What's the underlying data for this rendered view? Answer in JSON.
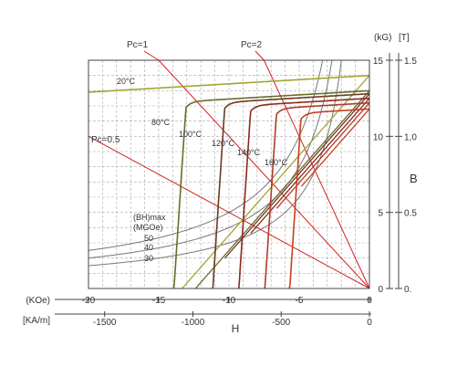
{
  "chart_data": {
    "type": "line",
    "title": "",
    "xlabel": "H",
    "ylabel": "B",
    "x_primary": {
      "unit": "(KOe)",
      "range": [
        -20,
        0
      ],
      "ticks": [
        -20,
        -15,
        -10,
        -5,
        0
      ]
    },
    "x_secondary": {
      "unit": "[KA/m]",
      "ticks": [
        -1500,
        -1000,
        -500,
        0
      ]
    },
    "y_primary": {
      "unit": "(kG)",
      "range": [
        0,
        15
      ],
      "ticks": [
        0,
        5,
        10,
        15
      ]
    },
    "y_secondary": {
      "unit": "[T]",
      "ticks": [
        "0.",
        "0.5",
        "1,0",
        "1.5"
      ]
    },
    "grid": true,
    "permeance_lines": [
      {
        "name": "Pc=0.5",
        "slope": 0.5
      },
      {
        "name": "Pc=1",
        "slope": 1
      },
      {
        "name": "Pc=2",
        "slope": 2
      }
    ],
    "bh_label": "(BH)max\n(MGOe)",
    "bhmax_curves": [
      {
        "name": "50",
        "value": 50
      },
      {
        "name": "40",
        "value": 40
      },
      {
        "name": "30",
        "value": 30
      }
    ],
    "temperature_curves": [
      {
        "name": "20°C",
        "br": 14.0,
        "recoil": 1.05,
        "hcj": -26,
        "color": "#a4a432"
      },
      {
        "name": "80°C",
        "br": 13.0,
        "recoil": 1.05,
        "hcj": -14.2,
        "color": "#6b6b2a"
      },
      {
        "name": "100°C",
        "br": 12.8,
        "recoil": 1.05,
        "hcj": -11.2,
        "color": "#6b3a1e"
      },
      {
        "name": "120°C",
        "br": 12.5,
        "recoil": 1.05,
        "hcj": -9.2,
        "color": "#8b2a1e"
      },
      {
        "name": "140°C",
        "br": 12.2,
        "recoil": 1.05,
        "hcj": -7.2,
        "color": "#b03a2a"
      },
      {
        "name": "160°C",
        "br": 11.8,
        "recoil": 1.05,
        "hcj": -5.3,
        "color": "#c8401e"
      }
    ],
    "colors": {
      "grid": "#aaaaaa",
      "permeance": "#d22020",
      "bhmax": "#777777",
      "frame": "#444444"
    }
  }
}
